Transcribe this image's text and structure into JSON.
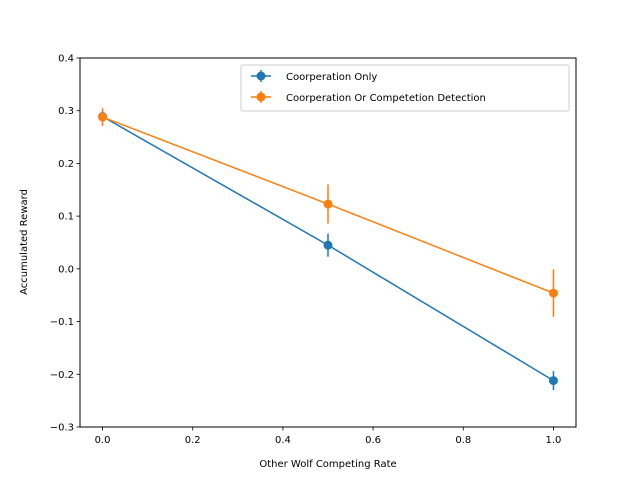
{
  "chart_data": {
    "type": "line",
    "xlabel": "Other Wolf Competing Rate",
    "ylabel": "Accumulated Reward",
    "xlim": [
      -0.05,
      1.05
    ],
    "ylim": [
      -0.3,
      0.4
    ],
    "x_ticks": [
      0.0,
      0.2,
      0.4,
      0.6,
      0.8,
      1.0
    ],
    "x_tick_labels": [
      "0.0",
      "0.2",
      "0.4",
      "0.6",
      "0.8",
      "1.0"
    ],
    "y_ticks": [
      -0.3,
      -0.2,
      -0.1,
      0.0,
      0.1,
      0.2,
      0.3,
      0.4
    ],
    "y_tick_labels": [
      "−0.3",
      "−0.2",
      "−0.1",
      "0.0",
      "0.1",
      "0.2",
      "0.3",
      "0.4"
    ],
    "grid": false,
    "legend_position": "top-right",
    "x": [
      0.0,
      0.5,
      1.0
    ],
    "series": [
      {
        "name": "Coorperation Only",
        "color": "#1f77b4",
        "values": [
          0.289,
          0.045,
          -0.212
        ],
        "errors": [
          0.012,
          0.022,
          0.018
        ]
      },
      {
        "name": "Coorperation Or Competetion Detection",
        "color": "#ff7f0e",
        "values": [
          0.288,
          0.123,
          -0.046
        ],
        "errors": [
          0.017,
          0.037,
          0.045
        ]
      }
    ]
  }
}
